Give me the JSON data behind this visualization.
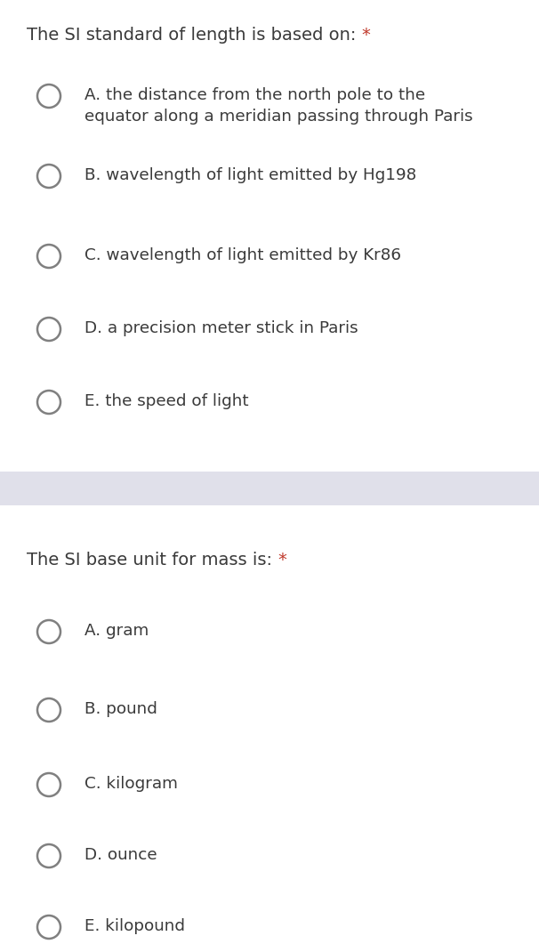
{
  "bg_color": "#ffffff",
  "divider_color": "#e0e0ea",
  "question1": {
    "text": "The SI standard of length is based on: ",
    "asterisk": "*",
    "options": [
      "A. the distance from the north pole to the\nequator along a meridian passing through Paris",
      "B. wavelength of light emitted by Hg198",
      "C. wavelength of light emitted by Kr86",
      "D. a precision meter stick in Paris",
      "E. the speed of light"
    ]
  },
  "question2": {
    "text": "The SI base unit for mass is: ",
    "asterisk": "*",
    "options": [
      "A. gram",
      "B. pound",
      "C. kilogram",
      "D. ounce",
      "E. kilopound"
    ]
  },
  "question_text_color": "#3a3a3a",
  "asterisk_color": "#c0392b",
  "option_text_color": "#3a3a3a",
  "circle_edge_color": "#808080",
  "circle_face_color": "#ffffff",
  "font_size_question": 14.0,
  "font_size_option": 13.2,
  "fig_width": 6.06,
  "fig_height": 10.7,
  "dpi": 100
}
